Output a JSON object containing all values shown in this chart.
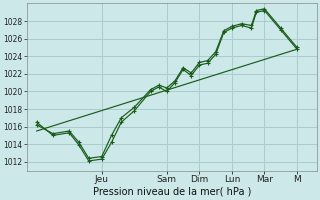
{
  "background_color": "#cce8e8",
  "grid_color": "#aacccc",
  "line_color": "#1a5c1a",
  "title": "Pression niveau de la mer( hPa )",
  "ylim": [
    1011,
    1030
  ],
  "yticks": [
    1012,
    1014,
    1016,
    1018,
    1020,
    1022,
    1024,
    1026,
    1028
  ],
  "day_labels": [
    "Jeu",
    "Sam",
    "Dim",
    "Lun",
    "Mar",
    "M"
  ],
  "day_positions": [
    2,
    4,
    5,
    6,
    7,
    8
  ],
  "xlim": [
    -0.3,
    8.6
  ],
  "series1_x": [
    0,
    0.5,
    1.0,
    1.3,
    1.6,
    2.0,
    2.3,
    2.6,
    3.0,
    3.5,
    3.75,
    4.0,
    4.25,
    4.5,
    4.75,
    5.0,
    5.25,
    5.5,
    5.75,
    6.0,
    6.3,
    6.6,
    6.75,
    7.0,
    7.5,
    8.0
  ],
  "series1_y": [
    1016.5,
    1015.0,
    1015.3,
    1013.9,
    1012.1,
    1012.3,
    1014.2,
    1016.5,
    1017.8,
    1020.0,
    1020.5,
    1020.0,
    1021.0,
    1022.5,
    1021.8,
    1023.0,
    1023.2,
    1024.2,
    1026.7,
    1027.2,
    1027.5,
    1027.2,
    1029.0,
    1029.2,
    1027.0,
    1024.8
  ],
  "series2_x": [
    0,
    0.5,
    1.0,
    1.3,
    1.6,
    2.0,
    2.3,
    2.6,
    3.0,
    3.5,
    3.75,
    4.0,
    4.25,
    4.5,
    4.75,
    5.0,
    5.25,
    5.5,
    5.75,
    6.0,
    6.3,
    6.6,
    6.75,
    7.0,
    7.5,
    8.0
  ],
  "series2_y": [
    1016.2,
    1015.2,
    1015.5,
    1014.2,
    1012.4,
    1012.6,
    1015.0,
    1017.0,
    1018.2,
    1020.2,
    1020.7,
    1020.4,
    1021.2,
    1022.7,
    1022.1,
    1023.3,
    1023.5,
    1024.5,
    1026.9,
    1027.4,
    1027.7,
    1027.5,
    1029.2,
    1029.4,
    1027.2,
    1025.0
  ],
  "series3_x": [
    0,
    8.0
  ],
  "series3_y": [
    1015.5,
    1024.8
  ],
  "marker": "+",
  "marker_size": 2.5,
  "lw": 0.85,
  "ylabel_fontsize": 5.5,
  "xlabel_fontsize": 7,
  "xtick_fontsize": 6.5
}
